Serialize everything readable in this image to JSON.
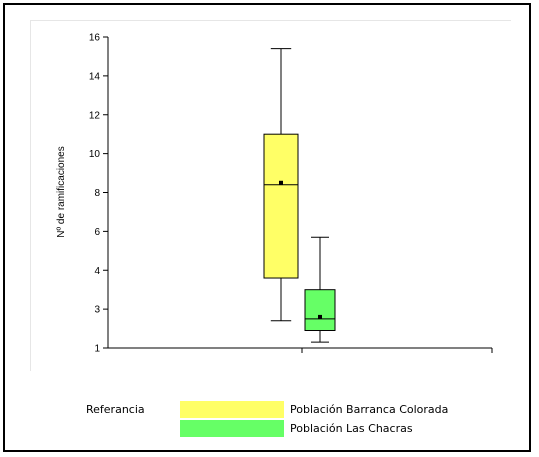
{
  "chart_data": {
    "type": "boxplot",
    "ylabel": "Nº de ramificaciones",
    "y_ticks": [
      "1",
      "3",
      "4",
      "6",
      "8",
      "10",
      "12",
      "14",
      "16"
    ],
    "series": [
      {
        "name": "Población Barranca Colorada",
        "color": "#ffff66",
        "min": 2.4,
        "q1": 3.8,
        "median": 8.4,
        "mean": 8.5,
        "q3": 11.0,
        "max": 15.4
      },
      {
        "name": "Población Las Chacras",
        "color": "#66ff66",
        "min": 1.3,
        "q1": 1.9,
        "median": 2.5,
        "mean": 2.6,
        "q3": 3.5,
        "max": 5.7
      }
    ],
    "grid": false,
    "legend_position": "bottom"
  },
  "legend": {
    "title": "Referancia"
  }
}
